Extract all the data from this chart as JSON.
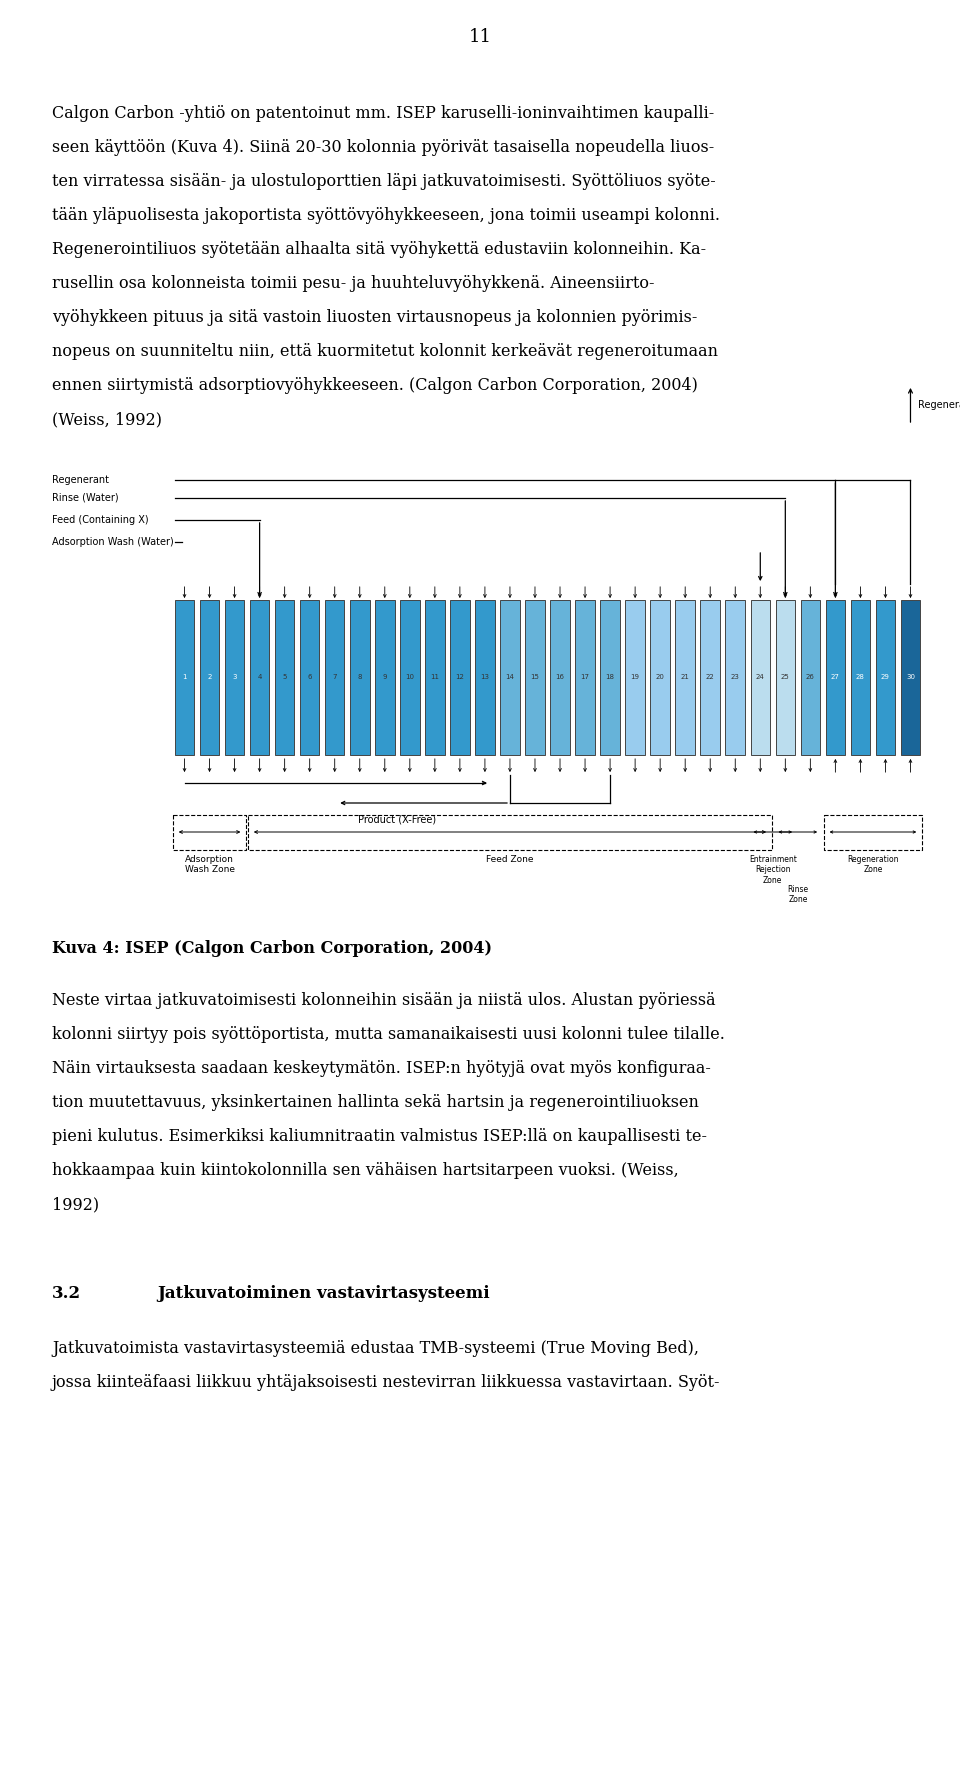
{
  "page_number": "11",
  "background_color": "#ffffff",
  "text_color": "#000000",
  "font_family": "DejaVu Serif",
  "para1_lines": [
    "Calgon Carbon -yhtiö on patentoinut mm. ISEP karuselli-ioninvaihtimen kaupalli-",
    "seen käyttöön (Kuva 4). Siinä 20-30 kolonnia pyörivät tasaisella nopeudella liuos-",
    "ten virratessa sisään- ja ulostuloporttien läpi jatkuvatoimisesti. Syöttöliuos syöte-",
    "tään yläpuolisesta jakoportista syöttövyöhykkeeseen, jona toimii useampi kolonni.",
    "Regenerointiliuos syötetään alhaalta sitä vyöhykettä edustaviin kolonneihin. Ka-",
    "rusellin osa kolonneista toimii pesu- ja huuhteluvyöhykkenä. Aineensiirto-",
    "vyöhykkeen pituus ja sitä vastoin liuosten virtausnopeus ja kolonnien pyörimis-",
    "nopeus on suunniteltu niin, että kuormitetut kolonnit kerkeävät regeneroitumaan",
    "ennen siirtymistä adsorptiokyöhykkeeseen. (Calgon Carbon Corporation, 2004)",
    "(Weiss, 1992)"
  ],
  "figure_caption": "Kuva 4: ISEP (Calgon Carbon Corporation, 2004)",
  "para2_lines": [
    "Neste virtaa jatkuvatoimisesti kolonneihin sisään ja niistä ulos. Alustan pyöriesä",
    "kolonni siirtyy pois syöttöportista, mutta samanaikaisesti uusi kolonni tulee tilalle.",
    "Näin virtauksesta saadaan keskeytymätön. ISEP:n hyötyjä ovat myös konfiguraa-",
    "tion muutettavuus, yksinkertainen hallinta sekä hartsin ja regenerointiliuoksen",
    "pieni kulutus. Esimerkiksi kaliumnitraatin valmistus ISEP:llä on kaupallisesti te-",
    "hokkaampaa kuin kiintokolonnilla sen vähäisen hartsitarpeen vuoksi. (Weiss,",
    "1992)"
  ],
  "section_number": "3.2",
  "section_title": "Jatkuvatoiminen vastavirtasysteemi",
  "para3_lines": [
    "Jatkuvatoimista vastavirtasysteemiä edustaa TMB-systeemi (True Moving Bed),",
    "jossa kiinteäfaasi liikkuu yhtäjaksoisesti nestevirran liikkuessa vastavirtaan. Syöt-"
  ],
  "col_colors": {
    "1": "#3399CC",
    "2": "#3399CC",
    "3": "#3399CC",
    "4": "#3399CC",
    "5": "#3399CC",
    "6": "#3399CC",
    "7": "#3399CC",
    "8": "#3399CC",
    "9": "#3399CC",
    "10": "#3399CC",
    "11": "#3399CC",
    "12": "#3399CC",
    "13": "#3399CC",
    "14": "#66B3D9",
    "15": "#66B3D9",
    "16": "#66B3D9",
    "17": "#66B3D9",
    "18": "#66B3D9",
    "19": "#99CCEE",
    "20": "#99CCEE",
    "21": "#99CCEE",
    "22": "#99CCEE",
    "23": "#99CCEE",
    "24": "#BBDDEE",
    "25": "#BBDDEE",
    "26": "#66B3D9",
    "27": "#3399CC",
    "28": "#3399CC",
    "29": "#3399CC",
    "30": "#1A6699"
  }
}
